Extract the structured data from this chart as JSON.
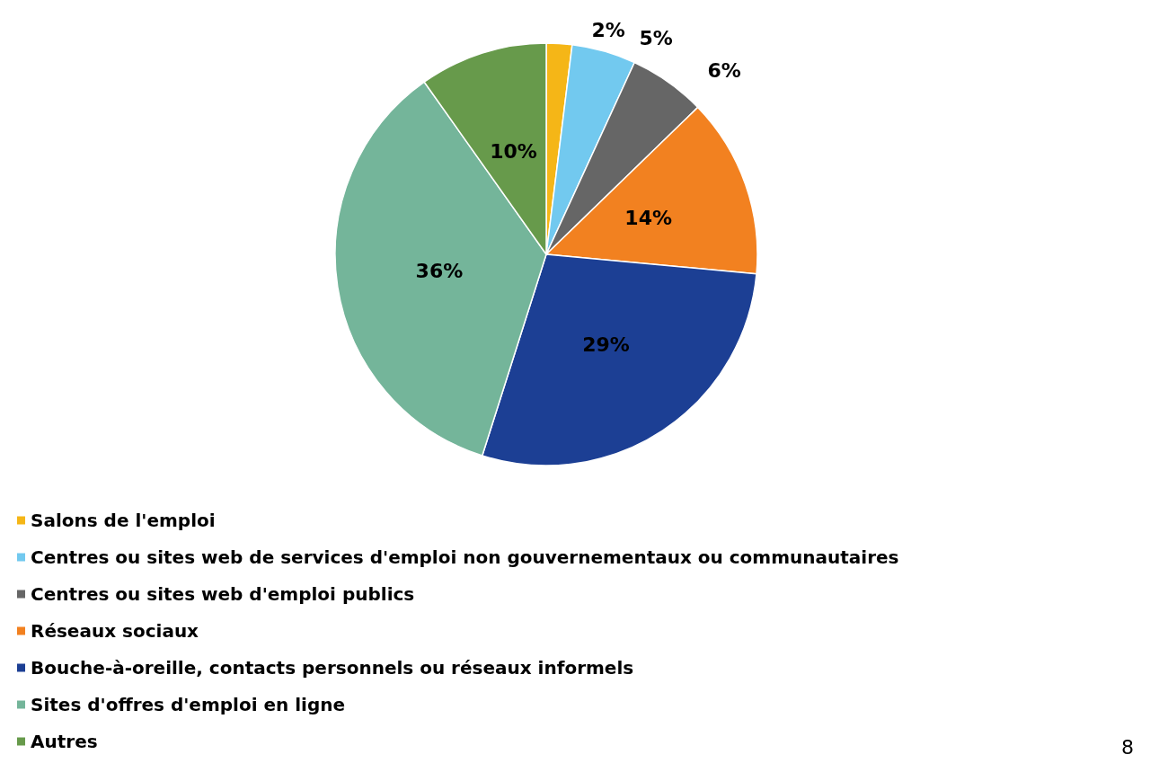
{
  "chart_data": {
    "type": "pie",
    "categories": [
      "Salons de l'emploi",
      "Centres ou sites web de services d'emploi non gouvernementaux ou communautaires",
      "Centres ou sites web d'emploi publics",
      "Réseaux sociaux",
      "Bouche-à-oreille, contacts personnels ou réseaux informels",
      "Sites d'offres d'emploi en ligne",
      "Autres"
    ],
    "values": [
      2,
      5,
      6,
      14,
      29,
      36,
      10
    ],
    "value_labels": [
      "2%",
      "5%",
      "6%",
      "14%",
      "29%",
      "36%",
      "10%"
    ],
    "colors": [
      "#f5b617",
      "#72c9ef",
      "#666666",
      "#f28120",
      "#1c3f94",
      "#74b59a",
      "#679a4b"
    ],
    "legend": "bottom left",
    "annotations": [
      "8"
    ]
  }
}
